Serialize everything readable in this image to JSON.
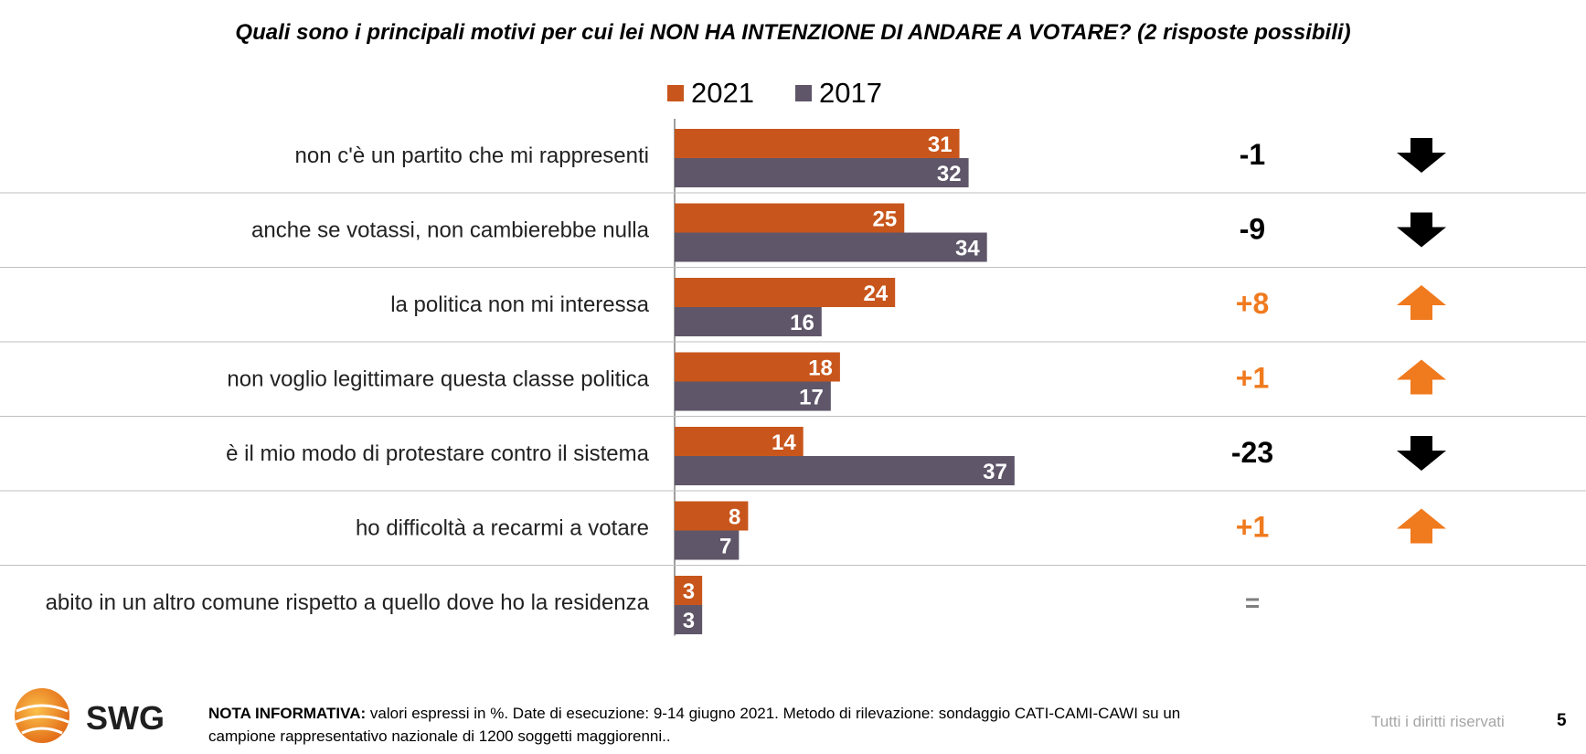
{
  "title": "Quali sono i principali motivi per cui lei NON HA INTENZIONE DI ANDARE A VOTARE? (2 risposte possibili)",
  "colors": {
    "series_2021": "#C8561C",
    "series_2017": "#5F5669",
    "up": "#F07A1E",
    "down": "#000000",
    "neutral": "#7f7f7f",
    "divider": "#bfbfbf"
  },
  "chart_data": {
    "type": "bar",
    "orientation": "horizontal",
    "title": "Quali sono i principali motivi per cui lei NON HA INTENZIONE DI ANDARE A VOTARE? (2 risposte possibili)",
    "categories": [
      "non c'è un partito che mi rappresenti",
      "anche se votassi, non cambierebbe nulla",
      "la politica non mi interessa",
      "non voglio legittimare questa classe politica",
      "è il mio modo di protestare contro il sistema",
      "ho difficoltà a recarmi a votare",
      "abito in un altro comune rispetto a quello dove ho la residenza"
    ],
    "series": [
      {
        "name": "2021",
        "values": [
          31,
          25,
          24,
          18,
          14,
          8,
          3
        ]
      },
      {
        "name": "2017",
        "values": [
          32,
          34,
          16,
          17,
          37,
          7,
          3
        ]
      }
    ],
    "differences": [
      "-1",
      "-9",
      "+8",
      "+1",
      "-23",
      "+1",
      "="
    ],
    "trend": [
      "down",
      "down",
      "up",
      "up",
      "down",
      "up",
      "none"
    ],
    "xlim": [
      0,
      100
    ],
    "legend": "top",
    "grid": false
  },
  "legend": {
    "label_2021": "2021",
    "label_2017": "2017"
  },
  "footer": {
    "note_bold": "NOTA INFORMATIVA:",
    "note_line1": " valori espressi in %. Date di esecuzione: 9-14 giugno 2021. Metodo di rilevazione: sondaggio CATI-CAMI-CAWI su un",
    "note_line2": "campione rappresentativo nazionale di 1200 soggetti maggiorenni..",
    "rights": "Tutti i diritti riservati",
    "page": "5",
    "logo_text": "SWG"
  }
}
